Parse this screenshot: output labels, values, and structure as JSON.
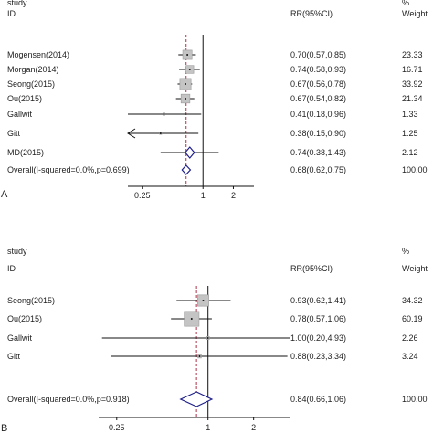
{
  "chart_data": [
    {
      "type": "forest",
      "panel_label": "A",
      "headers": {
        "study": "study",
        "id": "ID",
        "rr": "RR(95%CI)",
        "pct": "%",
        "weight": "Weight"
      },
      "scale": "log",
      "xlim": [
        0.18,
        3.2
      ],
      "ticks": [
        {
          "value": 0.25,
          "label": "0.25"
        },
        {
          "value": 1,
          "label": "1"
        },
        {
          "value": 2,
          "label": "2"
        }
      ],
      "null_line": 1,
      "overall_line": 0.68,
      "rows": [
        {
          "label": "Mogensen(2014)",
          "rr": 0.7,
          "lo": 0.57,
          "hi": 0.85,
          "rr_text": "0.70(0.57,0.85)",
          "weight": 23.33,
          "weight_text": "23.33"
        },
        {
          "label": "Morgan(2014)",
          "rr": 0.74,
          "lo": 0.58,
          "hi": 0.93,
          "rr_text": "0.74(0.58,0.93)",
          "weight": 16.71,
          "weight_text": "16.71"
        },
        {
          "label": "Seong(2015)",
          "rr": 0.67,
          "lo": 0.56,
          "hi": 0.78,
          "rr_text": "0.67(0.56,0.78)",
          "weight": 33.92,
          "weight_text": "33.92"
        },
        {
          "label": "Ou(2015)",
          "rr": 0.67,
          "lo": 0.54,
          "hi": 0.82,
          "rr_text": "0.67(0.54,0.82)",
          "weight": 21.34,
          "weight_text": "21.34"
        },
        {
          "label": "Gallwit",
          "rr": 0.41,
          "lo": 0.18,
          "hi": 0.96,
          "rr_text": "0.41(0.18,0.96)",
          "weight": 1.33,
          "weight_text": "1.33"
        },
        {
          "label": "Gitt",
          "rr": 0.38,
          "lo": 0.15,
          "hi": 0.9,
          "rr_text": "0.38(0.15,0.90)",
          "weight": 1.25,
          "weight_text": "1.25",
          "arrow_left": true
        },
        {
          "label": "MD(2015)",
          "rr": 0.74,
          "lo": 0.38,
          "hi": 1.43,
          "rr_text": "0.74(0.38,1.43)",
          "weight": 2.12,
          "weight_text": "2.12",
          "diamond": true
        }
      ],
      "overall": {
        "label": "Overall(I-squared=0.0%,p=0.699)",
        "rr": 0.68,
        "lo": 0.62,
        "hi": 0.75,
        "rr_text": "0.68(0.62,0.75)",
        "weight_text": "100.00"
      }
    },
    {
      "type": "forest",
      "panel_label": "B",
      "headers": {
        "study": "study",
        "id": "ID",
        "rr": "RR(95%CI)",
        "pct": "%",
        "weight": "Weight"
      },
      "scale": "log",
      "xlim": [
        0.19,
        3.5
      ],
      "ticks": [
        {
          "value": 0.25,
          "label": "0.25"
        },
        {
          "value": 1,
          "label": "1"
        },
        {
          "value": 2,
          "label": "2"
        }
      ],
      "null_line": 1,
      "overall_line": 0.84,
      "rows": [
        {
          "label": "Seong(2015)",
          "rr": 0.93,
          "lo": 0.62,
          "hi": 1.41,
          "rr_text": "0.93(0.62,1.41)",
          "weight": 34.32,
          "weight_text": "34.32"
        },
        {
          "label": "Ou(2015)",
          "rr": 0.78,
          "lo": 0.57,
          "hi": 1.06,
          "rr_text": "0.78(0.57,1.06)",
          "weight": 60.19,
          "weight_text": "60.19"
        },
        {
          "label": "Gallwit",
          "rr": 1.0,
          "lo": 0.2,
          "hi": 4.93,
          "rr_text": "1.00(0.20,4.93)",
          "weight": 2.26,
          "weight_text": "2.26"
        },
        {
          "label": "Gitt",
          "rr": 0.88,
          "lo": 0.23,
          "hi": 3.34,
          "rr_text": "0.88(0.23,3.34)",
          "weight": 3.24,
          "weight_text": "3.24"
        }
      ],
      "overall": {
        "label": "Overall(I-squared=0.0%,p=0.918)",
        "rr": 0.84,
        "lo": 0.66,
        "hi": 1.06,
        "rr_text": "0.84(0.66,1.06)",
        "weight_text": "100.00"
      }
    }
  ],
  "colors": {
    "text": "#222222",
    "line": "#111111",
    "box": "#c4c4c4",
    "box_border": "#9a9a9a",
    "diamond": "#1f1f8c",
    "overall_line": "#b0304a"
  }
}
